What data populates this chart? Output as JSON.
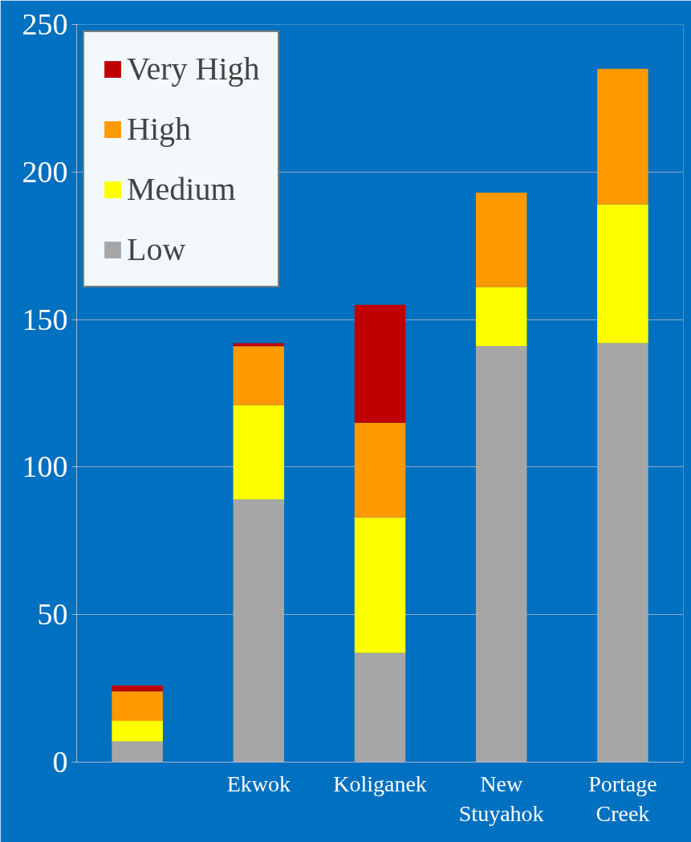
{
  "chart_data": {
    "type": "bar",
    "stacked": true,
    "categories": [
      null,
      "Ekwok",
      "Koliganek",
      "New\nStuyahok",
      "Portage\nCreek"
    ],
    "series": [
      {
        "name": "Low",
        "color": "#a6a6a6",
        "values": [
          7,
          89,
          37,
          141,
          142
        ]
      },
      {
        "name": "Medium",
        "color": "#ffff00",
        "values": [
          7,
          32,
          46,
          20,
          47
        ]
      },
      {
        "name": "High",
        "color": "#ff9900",
        "values": [
          10,
          20,
          32,
          32,
          46
        ]
      },
      {
        "name": "Very High",
        "color": "#c00000",
        "values": [
          2,
          1,
          40,
          0,
          0
        ]
      }
    ],
    "ylim": [
      0,
      250
    ],
    "yticks": [
      0,
      50,
      100,
      150,
      200,
      250
    ],
    "grid": "y",
    "legend": "top left"
  }
}
